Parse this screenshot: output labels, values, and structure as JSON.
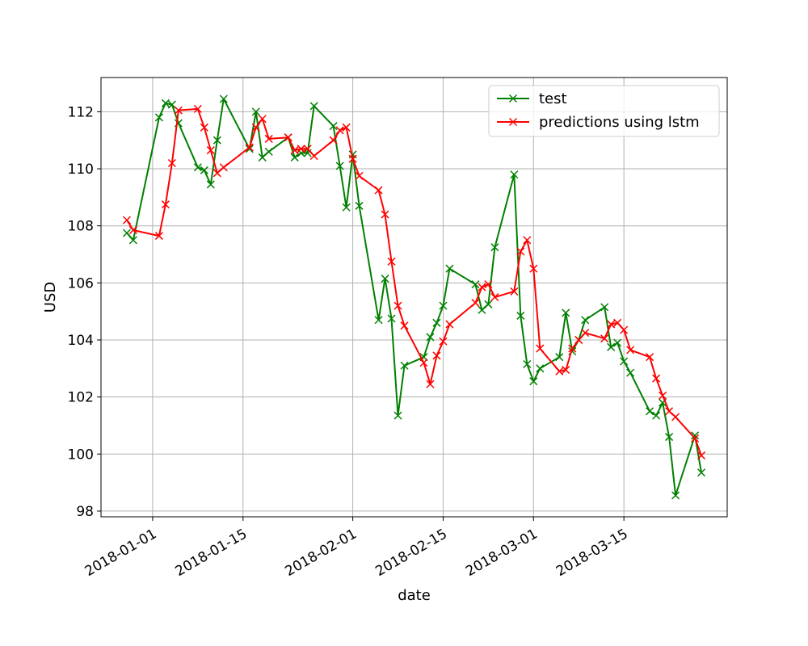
{
  "chart_data": {
    "type": "line",
    "xlabel": "date",
    "ylabel": "USD",
    "x_tick_labels": [
      "2018-01-01",
      "2018-01-15",
      "2018-02-01",
      "2018-02-15",
      "2018-03-01",
      "2018-03-15"
    ],
    "x_ticks": [
      "2018-01-01",
      "2018-01-15",
      "2018-02-01",
      "2018-02-15",
      "2018-03-01",
      "2018-03-15"
    ],
    "xlim": [
      "2017-12-24",
      "2018-03-31"
    ],
    "y_ticks": [
      98,
      100,
      102,
      104,
      106,
      108,
      110,
      112
    ],
    "y_tick_labels": [
      "98",
      "100",
      "102",
      "104",
      "106",
      "108",
      "110",
      "112"
    ],
    "ylim": [
      97.8,
      113.2
    ],
    "grid": true,
    "legend_position": "top-right",
    "marker": "x",
    "series": [
      {
        "name": "test",
        "color": "#008000",
        "points": [
          [
            "2017-12-28",
            107.75
          ],
          [
            "2017-12-29",
            107.5
          ],
          [
            "2018-01-02",
            111.8
          ],
          [
            "2018-01-03",
            112.3
          ],
          [
            "2018-01-04",
            112.25
          ],
          [
            "2018-01-05",
            111.6
          ],
          [
            "2018-01-08",
            110.05
          ],
          [
            "2018-01-09",
            109.95
          ],
          [
            "2018-01-10",
            109.45
          ],
          [
            "2018-01-11",
            111.0
          ],
          [
            "2018-01-12",
            112.45
          ],
          [
            "2018-01-16",
            110.7
          ],
          [
            "2018-01-17",
            112.0
          ],
          [
            "2018-01-18",
            110.4
          ],
          [
            "2018-01-19",
            110.6
          ],
          [
            "2018-01-22",
            111.1
          ],
          [
            "2018-01-23",
            110.4
          ],
          [
            "2018-01-24",
            110.55
          ],
          [
            "2018-01-25",
            110.55
          ],
          [
            "2018-01-26",
            112.2
          ],
          [
            "2018-01-29",
            111.5
          ],
          [
            "2018-01-30",
            110.1
          ],
          [
            "2018-01-31",
            108.65
          ],
          [
            "2018-02-01",
            110.5
          ],
          [
            "2018-02-02",
            108.7
          ],
          [
            "2018-02-05",
            104.7
          ],
          [
            "2018-02-06",
            106.15
          ],
          [
            "2018-02-07",
            104.75
          ],
          [
            "2018-02-08",
            101.35
          ],
          [
            "2018-02-09",
            103.1
          ],
          [
            "2018-02-12",
            103.4
          ],
          [
            "2018-02-13",
            104.1
          ],
          [
            "2018-02-14",
            104.6
          ],
          [
            "2018-02-15",
            105.2
          ],
          [
            "2018-02-16",
            106.5
          ],
          [
            "2018-02-20",
            105.95
          ],
          [
            "2018-02-21",
            105.05
          ],
          [
            "2018-02-22",
            105.25
          ],
          [
            "2018-02-23",
            107.25
          ],
          [
            "2018-02-26",
            109.8
          ],
          [
            "2018-02-27",
            104.85
          ],
          [
            "2018-02-28",
            103.15
          ],
          [
            "2018-03-01",
            102.55
          ],
          [
            "2018-03-02",
            103.0
          ],
          [
            "2018-03-05",
            103.4
          ],
          [
            "2018-03-06",
            104.95
          ],
          [
            "2018-03-07",
            103.6
          ],
          [
            "2018-03-08",
            104.0
          ],
          [
            "2018-03-09",
            104.7
          ],
          [
            "2018-03-12",
            105.15
          ],
          [
            "2018-03-13",
            103.75
          ],
          [
            "2018-03-14",
            103.9
          ],
          [
            "2018-03-15",
            103.25
          ],
          [
            "2018-03-16",
            102.85
          ],
          [
            "2018-03-19",
            101.5
          ],
          [
            "2018-03-20",
            101.35
          ],
          [
            "2018-03-21",
            101.8
          ],
          [
            "2018-03-22",
            100.6
          ],
          [
            "2018-03-23",
            98.55
          ],
          [
            "2018-03-26",
            100.65
          ],
          [
            "2018-03-27",
            99.35
          ]
        ]
      },
      {
        "name": "predictions using lstm",
        "color": "#ff0000",
        "points": [
          [
            "2017-12-28",
            108.2
          ],
          [
            "2017-12-29",
            107.85
          ],
          [
            "2018-01-02",
            107.65
          ],
          [
            "2018-01-03",
            108.75
          ],
          [
            "2018-01-04",
            110.2
          ],
          [
            "2018-01-05",
            112.05
          ],
          [
            "2018-01-08",
            112.1
          ],
          [
            "2018-01-09",
            111.45
          ],
          [
            "2018-01-10",
            110.65
          ],
          [
            "2018-01-11",
            109.85
          ],
          [
            "2018-01-12",
            110.05
          ],
          [
            "2018-01-16",
            110.75
          ],
          [
            "2018-01-17",
            111.45
          ],
          [
            "2018-01-18",
            111.75
          ],
          [
            "2018-01-19",
            111.05
          ],
          [
            "2018-01-22",
            111.1
          ],
          [
            "2018-01-23",
            110.65
          ],
          [
            "2018-01-24",
            110.7
          ],
          [
            "2018-01-25",
            110.7
          ],
          [
            "2018-01-26",
            110.45
          ],
          [
            "2018-01-29",
            111.0
          ],
          [
            "2018-01-30",
            111.35
          ],
          [
            "2018-01-31",
            111.45
          ],
          [
            "2018-02-01",
            110.35
          ],
          [
            "2018-02-02",
            109.75
          ],
          [
            "2018-02-05",
            109.25
          ],
          [
            "2018-02-06",
            108.4
          ],
          [
            "2018-02-07",
            106.75
          ],
          [
            "2018-02-08",
            105.2
          ],
          [
            "2018-02-09",
            104.5
          ],
          [
            "2018-02-12",
            103.2
          ],
          [
            "2018-02-13",
            102.45
          ],
          [
            "2018-02-14",
            103.45
          ],
          [
            "2018-02-15",
            103.95
          ],
          [
            "2018-02-16",
            104.55
          ],
          [
            "2018-02-20",
            105.3
          ],
          [
            "2018-02-21",
            105.85
          ],
          [
            "2018-02-22",
            105.95
          ],
          [
            "2018-02-23",
            105.5
          ],
          [
            "2018-02-26",
            105.7
          ],
          [
            "2018-02-27",
            107.1
          ],
          [
            "2018-02-28",
            107.5
          ],
          [
            "2018-03-01",
            106.5
          ],
          [
            "2018-03-02",
            103.7
          ],
          [
            "2018-03-05",
            102.9
          ],
          [
            "2018-03-06",
            102.95
          ],
          [
            "2018-03-07",
            103.7
          ],
          [
            "2018-03-08",
            104.0
          ],
          [
            "2018-03-09",
            104.25
          ],
          [
            "2018-03-12",
            104.05
          ],
          [
            "2018-03-13",
            104.55
          ],
          [
            "2018-03-14",
            104.6
          ],
          [
            "2018-03-15",
            104.35
          ],
          [
            "2018-03-16",
            103.65
          ],
          [
            "2018-03-19",
            103.4
          ],
          [
            "2018-03-20",
            102.65
          ],
          [
            "2018-03-21",
            102.05
          ],
          [
            "2018-03-22",
            101.5
          ],
          [
            "2018-03-23",
            101.3
          ],
          [
            "2018-03-26",
            100.55
          ],
          [
            "2018-03-27",
            99.95
          ]
        ]
      }
    ]
  }
}
